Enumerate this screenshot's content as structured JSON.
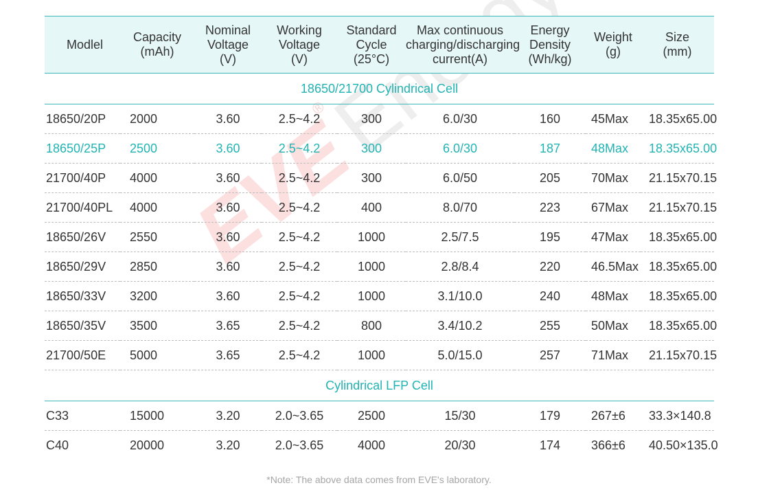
{
  "headers": [
    "Modlel",
    "Capacity\n(mAh)",
    "Nominal\nVoltage\n(V)",
    "Working\nVoltage\n(V)",
    "Standard\nCycle\n(25°C)",
    "Max continuous\ncharging/discharging\ncurrent(A)",
    "Energy\nDensity\n(Wh/kg)",
    "Weight\n(g)",
    "Size\n(mm)"
  ],
  "sections": [
    {
      "title": "18650/21700 Cylindrical Cell",
      "rows": [
        [
          "18650/20P",
          "2000",
          "3.60",
          "2.5~4.2",
          "300",
          "6.0/30",
          "160",
          "45Max",
          "18.35x65.00"
        ],
        [
          "18650/25P",
          "2500",
          "3.60",
          "2.5~4.2",
          "300",
          "6.0/30",
          "187",
          "48Max",
          "18.35x65.00"
        ],
        [
          "21700/40P",
          "4000",
          "3.60",
          "2.5~4.2",
          "300",
          "6.0/50",
          "205",
          "70Max",
          "21.15x70.15"
        ],
        [
          "21700/40PL",
          "4000",
          "3.60",
          "2.5~4.2",
          "400",
          "8.0/70",
          "223",
          "67Max",
          "21.15x70.15"
        ],
        [
          "18650/26V",
          "2550",
          "3.60",
          "2.5~4.2",
          "1000",
          "2.5/7.5",
          "195",
          "47Max",
          "18.35x65.00"
        ],
        [
          "18650/29V",
          "2850",
          "3.60",
          "2.5~4.2",
          "1000",
          "2.8/8.4",
          "220",
          "46.5Max",
          "18.35x65.00"
        ],
        [
          "18650/33V",
          "3200",
          "3.60",
          "2.5~4.2",
          "1000",
          "3.1/10.0",
          "240",
          "48Max",
          "18.35x65.00"
        ],
        [
          "18650/35V",
          "3500",
          "3.65",
          "2.5~4.2",
          "800",
          "3.4/10.2",
          "255",
          "50Max",
          "18.35x65.00"
        ],
        [
          "21700/50E",
          "5000",
          "3.65",
          "2.5~4.2",
          "1000",
          "5.0/15.0",
          "257",
          "71Max",
          "21.15x70.15"
        ]
      ]
    },
    {
      "title": "Cylindrical LFP Cell",
      "rows": [
        [
          "C33",
          "15000",
          "3.20",
          "2.0~3.65",
          "2500",
          "15/30",
          "179",
          "267±6",
          "33.3×140.8"
        ],
        [
          "C40",
          "20000",
          "3.20",
          "2.0~3.65",
          "4000",
          "20/30",
          "174",
          "366±6",
          "40.50×135.0"
        ]
      ]
    }
  ],
  "highlight_row": "18650/25P",
  "watermark": {
    "brand": "EVE",
    "registered": "®",
    "word": "Energy"
  },
  "note": "*Note: The above data comes from EVE's laboratory.",
  "colors": {
    "accent": "#22b3b3",
    "header_bg": "#e6f7f7",
    "watermark_red": "#f06e6e"
  }
}
